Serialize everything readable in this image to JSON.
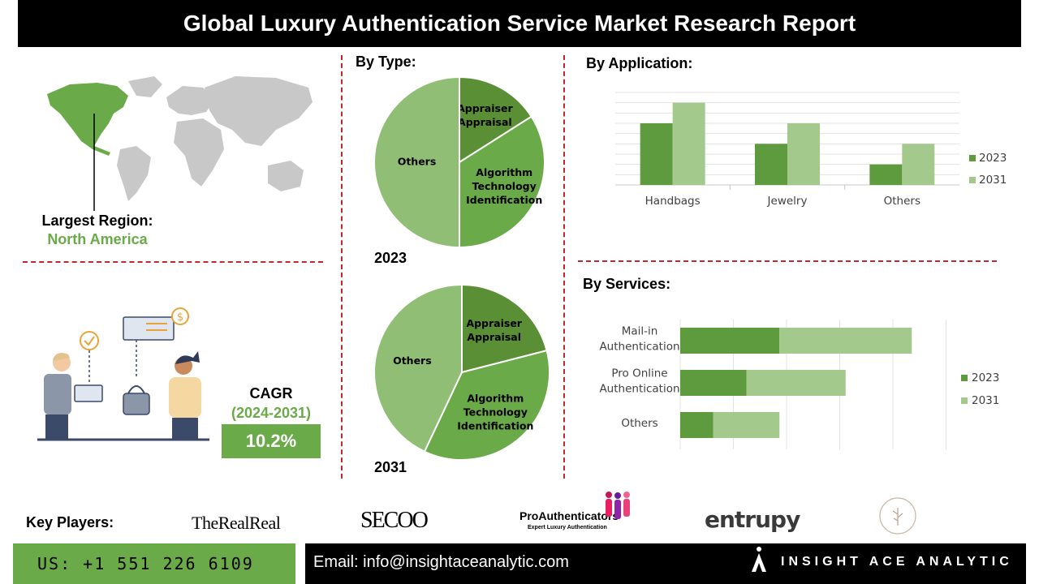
{
  "header": {
    "title": "Global Luxury Authentication Service Market Research Report"
  },
  "region": {
    "label": "Largest Region:",
    "value": "North America"
  },
  "cagr": {
    "label": "CAGR",
    "period": "(2024-2031)",
    "value": "10.2%"
  },
  "colors": {
    "dark_green": "#5e9a3e",
    "light_green": "#a3c98c",
    "pie_dark": "#5a8f35",
    "pie_mid": "#6aaa48",
    "pie_light": "#8fbe74",
    "accent": "#6aaa48",
    "divider": "#c0282d"
  },
  "by_type": {
    "title": "By Type:",
    "charts": [
      {
        "year": "2023"
      },
      {
        "year": "2031"
      }
    ]
  },
  "by_application": {
    "title": "By Application:"
  },
  "by_services": {
    "title": "By Services:"
  },
  "chart_data": [
    {
      "type": "pie",
      "section": "By Type:",
      "year": "2023",
      "slices": [
        {
          "label": "Appraiser Appraisal",
          "lines": [
            "Appraiser",
            "Appraisal"
          ],
          "value": 16
        },
        {
          "label": "Algorithm Technology Identification",
          "lines": [
            "Algorithm",
            "Technology",
            "Identification"
          ],
          "value": 34
        },
        {
          "label": "Others",
          "lines": [
            "Others"
          ],
          "value": 50
        }
      ]
    },
    {
      "type": "pie",
      "section": "By Type:",
      "year": "2031",
      "slices": [
        {
          "label": "Appraiser Appraisal",
          "lines": [
            "Appraiser",
            "Appraisal"
          ],
          "value": 21
        },
        {
          "label": "Algorithm Technology Identification",
          "lines": [
            "Algorithm",
            "Technology",
            "Identification"
          ],
          "value": 36
        },
        {
          "label": "Others",
          "lines": [
            "Others"
          ],
          "value": 43
        }
      ]
    },
    {
      "type": "bar",
      "section": "By Application:",
      "categories": [
        "Handbags",
        "Jewelry",
        "Others"
      ],
      "series": [
        {
          "name": "2023",
          "values": [
            3,
            2,
            1
          ]
        },
        {
          "name": "2031",
          "values": [
            4,
            3,
            2
          ]
        }
      ],
      "ylim": [
        0,
        4.5
      ],
      "grid": true,
      "legend": "right"
    },
    {
      "type": "bar",
      "orientation": "horizontal",
      "stacked": true,
      "section": "By Services:",
      "categories": [
        "Mail-in Authentication",
        "Pro Online Authentication",
        "Others"
      ],
      "category_lines": [
        [
          "Mail-in",
          "Authentication"
        ],
        [
          "Pro Online",
          "Authentication"
        ],
        [
          "Others"
        ]
      ],
      "series": [
        {
          "name": "2023",
          "values": [
            3,
            2,
            1
          ]
        },
        {
          "name": "2031",
          "values": [
            4,
            3,
            2
          ]
        }
      ],
      "xlim": [
        0,
        8
      ],
      "grid": true,
      "legend": "right"
    }
  ],
  "key_players": {
    "label": "Key Players:",
    "logos": [
      "TheRealReal",
      "SECOO",
      "ProAuthenticators",
      "Expert Luxury Authentication",
      "entrupy"
    ]
  },
  "footer": {
    "phone": "US: +1 551 226 6109",
    "email": "Email: info@insightaceanalytic.com",
    "brand": "INSIGHT ACE ANALYTIC"
  }
}
